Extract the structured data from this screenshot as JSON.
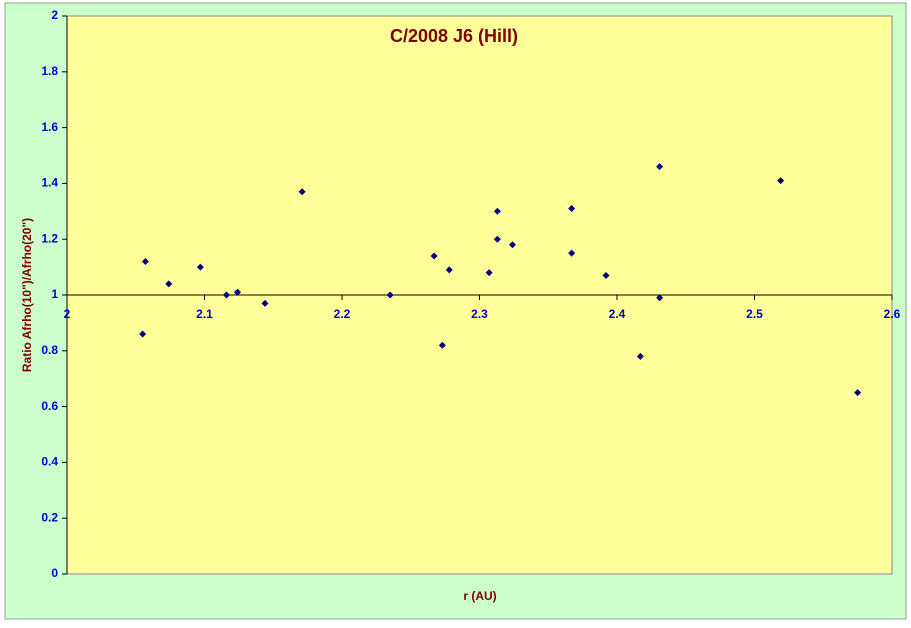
{
  "chart_data": {
    "type": "scatter",
    "title": "C/2008 J6 (Hill)",
    "x_label": "r (AU)",
    "y_label": "Ratio Afrho(10\")/Afrho(20\")",
    "color": "#000080",
    "xlim": [
      2,
      2.6
    ],
    "xticks": [
      2,
      2.1,
      2.2,
      2.3,
      2.4,
      2.5,
      2.6
    ],
    "ylim": [
      0,
      2
    ],
    "yticks": [
      0,
      0.2,
      0.4,
      0.6,
      0.8,
      1,
      1.2,
      1.4,
      1.6,
      1.8,
      2
    ],
    "x_axis_crosses": 1,
    "x": [
      2.057,
      2.055,
      2.074,
      2.097,
      2.116,
      2.124,
      2.144,
      2.171,
      2.235,
      2.267,
      2.273,
      2.278,
      2.307,
      2.313,
      2.313,
      2.324,
      2.367,
      2.367,
      2.392,
      2.417,
      2.431,
      2.431,
      2.519,
      2.575
    ],
    "values": [
      1.12,
      0.86,
      1.04,
      1.1,
      1.0,
      1.01,
      0.97,
      1.37,
      1.0,
      1.14,
      0.82,
      1.09,
      1.08,
      1.3,
      1.2,
      1.18,
      1.31,
      1.15,
      1.07,
      0.78,
      1.46,
      0.99,
      1.41,
      0.65
    ]
  }
}
